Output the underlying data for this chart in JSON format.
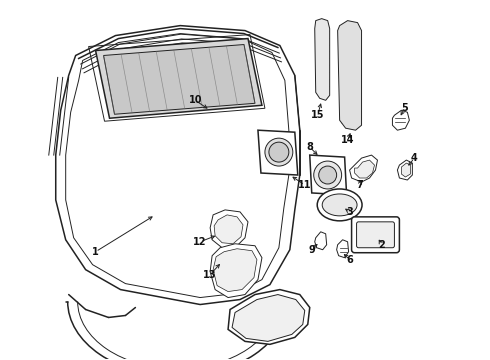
{
  "background_color": "#ffffff",
  "line_color": "#222222",
  "label_color": "#111111",
  "fig_width": 4.9,
  "fig_height": 3.6,
  "dpi": 100
}
